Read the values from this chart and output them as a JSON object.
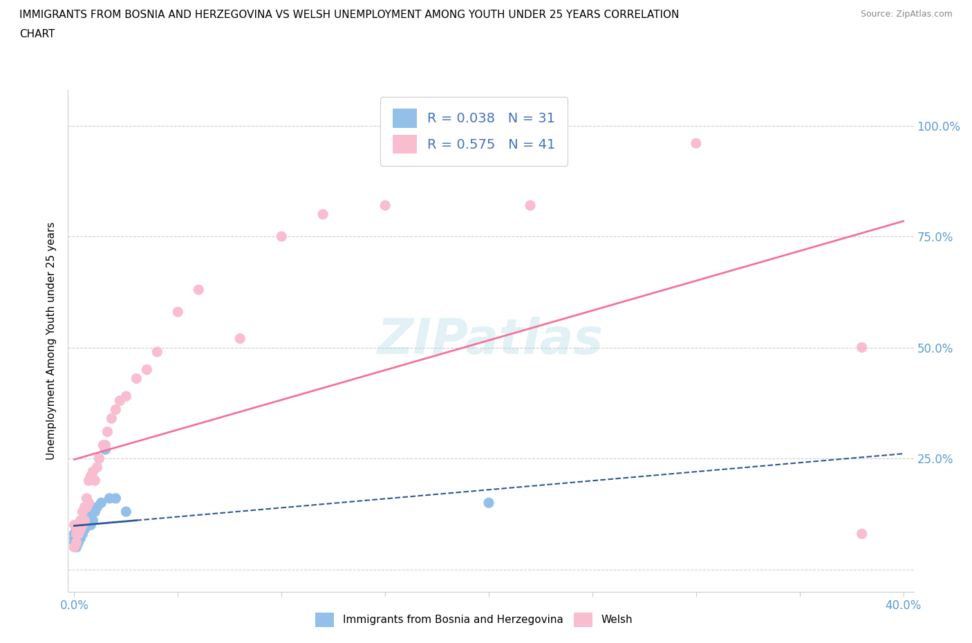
{
  "title_line1": "IMMIGRANTS FROM BOSNIA AND HERZEGOVINA VS WELSH UNEMPLOYMENT AMONG YOUTH UNDER 25 YEARS CORRELATION",
  "title_line2": "CHART",
  "source": "Source: ZipAtlas.com",
  "ylabel": "Unemployment Among Youth under 25 years",
  "xlim": [
    -0.003,
    0.405
  ],
  "ylim": [
    -0.05,
    1.08
  ],
  "yticks": [
    0.0,
    0.25,
    0.5,
    0.75,
    1.0
  ],
  "ytick_labels": [
    "",
    "25.0%",
    "50.0%",
    "75.0%",
    "100.0%"
  ],
  "xticks": [
    0.0,
    0.05,
    0.1,
    0.15,
    0.2,
    0.25,
    0.3,
    0.35,
    0.4
  ],
  "xtick_labels": [
    "0.0%",
    "",
    "",
    "",
    "",
    "",
    "",
    "",
    "40.0%"
  ],
  "bosnia_color": "#92c0e8",
  "welsh_color": "#f9bdd0",
  "bosnia_line_color": "#2f5597",
  "welsh_line_color": "#f4729a",
  "legend_bosnia_label": "R = 0.038   N = 31",
  "legend_welsh_label": "R = 0.575   N = 41",
  "bottom_legend_bosnia": "Immigrants from Bosnia and Herzegovina",
  "bottom_legend_welsh": "Welsh",
  "watermark": "ZIPatlas",
  "bosnia_x": [
    0.0,
    0.0,
    0.0,
    0.001,
    0.001,
    0.001,
    0.001,
    0.001,
    0.002,
    0.002,
    0.002,
    0.002,
    0.003,
    0.003,
    0.003,
    0.004,
    0.004,
    0.005,
    0.005,
    0.006,
    0.007,
    0.008,
    0.009,
    0.01,
    0.011,
    0.013,
    0.015,
    0.017,
    0.02,
    0.025,
    0.2
  ],
  "bosnia_y": [
    0.06,
    0.07,
    0.08,
    0.05,
    0.06,
    0.07,
    0.08,
    0.09,
    0.06,
    0.07,
    0.08,
    0.1,
    0.07,
    0.08,
    0.09,
    0.08,
    0.1,
    0.09,
    0.1,
    0.1,
    0.12,
    0.1,
    0.11,
    0.13,
    0.14,
    0.15,
    0.27,
    0.16,
    0.16,
    0.13,
    0.15
  ],
  "welsh_x": [
    0.0,
    0.0,
    0.001,
    0.001,
    0.002,
    0.002,
    0.003,
    0.003,
    0.004,
    0.004,
    0.005,
    0.005,
    0.006,
    0.006,
    0.007,
    0.007,
    0.008,
    0.009,
    0.01,
    0.011,
    0.012,
    0.014,
    0.015,
    0.016,
    0.018,
    0.02,
    0.022,
    0.025,
    0.03,
    0.035,
    0.04,
    0.05,
    0.06,
    0.08,
    0.1,
    0.12,
    0.15,
    0.22,
    0.3,
    0.38,
    0.38
  ],
  "welsh_y": [
    0.05,
    0.1,
    0.06,
    0.08,
    0.08,
    0.1,
    0.09,
    0.11,
    0.1,
    0.13,
    0.11,
    0.14,
    0.14,
    0.16,
    0.15,
    0.2,
    0.21,
    0.22,
    0.2,
    0.23,
    0.25,
    0.28,
    0.28,
    0.31,
    0.34,
    0.36,
    0.38,
    0.39,
    0.43,
    0.45,
    0.49,
    0.58,
    0.63,
    0.52,
    0.75,
    0.8,
    0.82,
    0.82,
    0.96,
    0.5,
    0.08
  ]
}
